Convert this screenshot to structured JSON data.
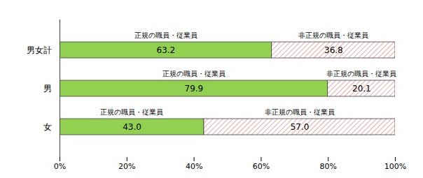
{
  "chart_data": {
    "type": "bar",
    "orientation": "horizontal",
    "stacked": true,
    "data_labels": true,
    "categories": [
      "男女計",
      "男",
      "女"
    ],
    "series": [
      {
        "name": "正規の職員・従業員",
        "color": "#92d050",
        "values": [
          63.2,
          79.9,
          43.0
        ],
        "value_labels": [
          "63.2",
          "79.9",
          "43.0"
        ]
      },
      {
        "name": "非正規の職員・従業員",
        "color": "#d9706e",
        "values": [
          36.8,
          20.1,
          57.0
        ],
        "value_labels": [
          "36.8",
          "20.1",
          "57.0"
        ]
      }
    ],
    "xlim": [
      0,
      100
    ],
    "xticks": [
      {
        "value": 0,
        "label": "0%"
      },
      {
        "value": 20,
        "label": "20%"
      },
      {
        "value": 40,
        "label": "40%"
      },
      {
        "value": 60,
        "label": "60%"
      },
      {
        "value": 80,
        "label": "80%"
      },
      {
        "value": 100,
        "label": "100%"
      }
    ],
    "grid": false
  }
}
